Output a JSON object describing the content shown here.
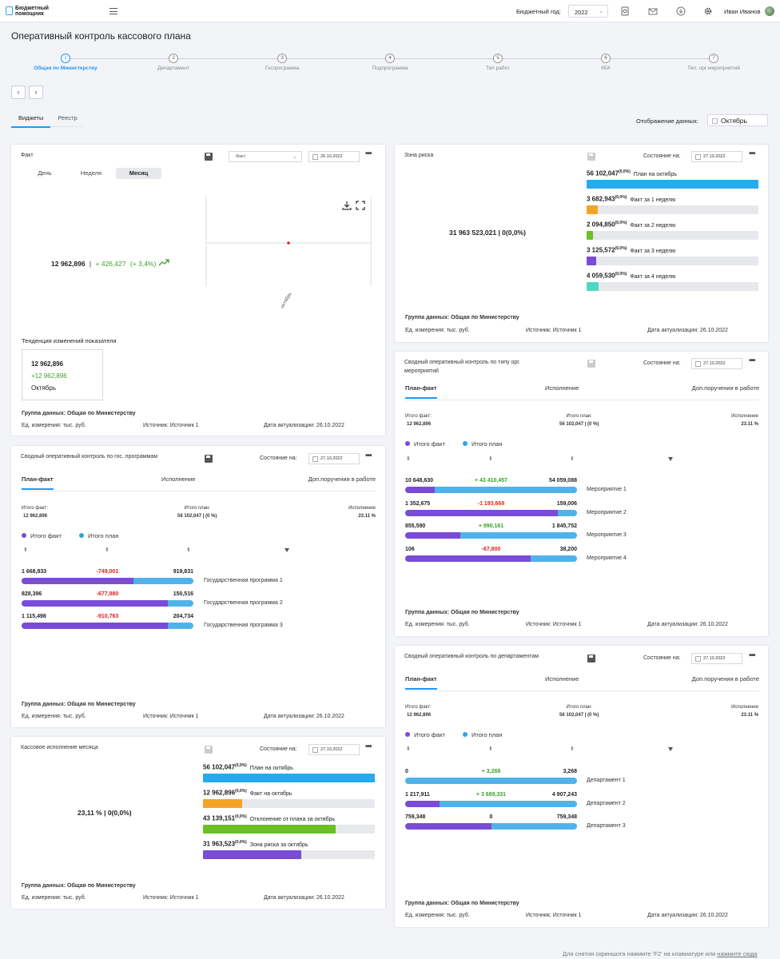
{
  "topbar": {
    "app_name_line1": "Бюджетный",
    "app_name_line2": "помощник",
    "budget_year_label": "Бюджетный год:",
    "budget_year_value": "2022",
    "user_name": "Иван Иванов"
  },
  "page": {
    "title": "Оперативный контроль кассового плана"
  },
  "stepper": [
    {
      "num": "1",
      "label": "Общая по Министерству"
    },
    {
      "num": "2",
      "label": "Департамент"
    },
    {
      "num": "3",
      "label": "Госпрограмма"
    },
    {
      "num": "4",
      "label": "Подпрограмма"
    },
    {
      "num": "5",
      "label": "Тип работ"
    },
    {
      "num": "6",
      "label": "КБК"
    },
    {
      "num": "7",
      "label": "Тип. орг мероприятий"
    }
  ],
  "nav": {
    "prev": "‹",
    "next": "›"
  },
  "view_tabs": [
    "Виджеты",
    "Реестр"
  ],
  "display": {
    "label": "Отображение данных:",
    "value": "Октябрь"
  },
  "common": {
    "state_label": "Состояние на:",
    "date_state": "27.10.2022",
    "more": "•••",
    "group": "Группа данных: Общая по Министерству",
    "unit": "Ед. измерения: тыс. руб.",
    "source": "Источник: Источник 1",
    "updated": "Дата актуализации: 26.10.2022",
    "subtab_plan": "План-факт",
    "subtab_exec": "Исполнение",
    "subtab_extra": "Доп.поручения в работе",
    "tot_fact_label": "Итого факт:",
    "tot_fact_value": "12 962,896",
    "tot_plan_label": "Итого план:",
    "tot_plan_value": "56 102,047 | (0 %)",
    "tot_exec_label": "Исполнение",
    "tot_exec_value": "23.11 %",
    "legend_fact": "Итого факт",
    "legend_plan": "Итого план"
  },
  "fact_card": {
    "title": "Факт",
    "select_value": "Факт",
    "date": "26.10.2022",
    "periods": [
      "День",
      "Неделя",
      "Месяц"
    ],
    "main_value": "12 962,896",
    "separator": "|",
    "delta": "+ 426,427",
    "delta_pct": "(+ 3,4%)",
    "x_tick": "октябрь",
    "trend_title": "Тенденция изменений показателя",
    "trend_value": "12 962,896",
    "trend_delta": "+12 962,896",
    "trend_period": "Октябрь"
  },
  "risk_card": {
    "title": "Зона риска",
    "date": "27.10.2022",
    "main_value": "31 963 523,021  |  0(0,0%)",
    "rows": [
      {
        "value": "56 102,047",
        "pct": "(0,0%)",
        "label": "План на октябрь",
        "fill": 1.0,
        "color": "#27aaf0"
      },
      {
        "value": "3 682,943",
        "pct": "(0,0%)",
        "label": "Факт за 1 неделю",
        "fill": 0.066,
        "color": "#f4a425"
      },
      {
        "value": "2 094,850",
        "pct": "(0,0%)",
        "label": "Факт за 2 неделю",
        "fill": 0.037,
        "color": "#6cc024"
      },
      {
        "value": "3 125,572",
        "pct": "(0,0%)",
        "label": "Факт за 3 неделю",
        "fill": 0.056,
        "color": "#7a4bd6"
      },
      {
        "value": "4 059,530",
        "pct": "(0,0%)",
        "label": "Факт за 4 неделю",
        "fill": 0.072,
        "color": "#4fd8c0"
      }
    ]
  },
  "gosprog_card": {
    "title": "Сводный оперативный контроль по гос. программам",
    "rows": [
      {
        "fact": "1 668,833",
        "delta": "-749,001",
        "plan": "919,831",
        "name": "Государственная программа 1",
        "fill": 0.65,
        "sign": "neg"
      },
      {
        "fact": "828,396",
        "delta": "-677,880",
        "plan": "150,516",
        "name": "Государственная программа 2",
        "fill": 0.85,
        "sign": "neg"
      },
      {
        "fact": "1 115,498",
        "delta": "-910,763",
        "plan": "204,734",
        "name": "Государственная программа 3",
        "fill": 0.85,
        "sign": "neg"
      }
    ]
  },
  "orgtype_card": {
    "title_line1": "Сводный оперативный контроль по типу орг.",
    "title_line2": "мероприятий",
    "rows": [
      {
        "fact": "10 648,630",
        "delta": "+ 43 410,457",
        "plan": "54 059,088",
        "name": "Мероприятие 1",
        "fill": 0.17,
        "sign": "pos"
      },
      {
        "fact": "1 352,675",
        "delta": "-1 193,668",
        "plan": "159,006",
        "name": "Мероприятие 2",
        "fill": 0.89,
        "sign": "neg"
      },
      {
        "fact": "855,590",
        "delta": "+ 990,161",
        "plan": "1 845,752",
        "name": "Мероприятие 3",
        "fill": 0.32,
        "sign": "pos"
      },
      {
        "fact": "106",
        "delta": "-67,800",
        "plan": "38,200",
        "name": "Мероприятие 4",
        "fill": 0.73,
        "sign": "neg"
      }
    ]
  },
  "cash_card": {
    "title": "Кассовое исполнение месяца",
    "main_value": "23,11 %  |  0(0,0%)",
    "rows": [
      {
        "value": "56 102,047",
        "pct": "(0,0%)",
        "label": "План на октябрь",
        "fill": 1.0,
        "color": "#27aaf0"
      },
      {
        "value": "12 962,896",
        "pct": "(0,0%)",
        "label": "Факт на октябрь",
        "fill": 0.23,
        "color": "#f4a425"
      },
      {
        "value": "43 139,151",
        "pct": "(0,0%)",
        "label": "Отклонение от плана за октябрь",
        "fill": 0.77,
        "color": "#6cc024"
      },
      {
        "value": "31 963,523",
        "pct": "(0,0%)",
        "label": "Зона риска за октябрь",
        "fill": 0.57,
        "color": "#7a4bd6"
      }
    ]
  },
  "dept_card": {
    "title": "Сводный оперативный контроль по департаментам",
    "rows": [
      {
        "fact": "0",
        "delta": "+ 3,268",
        "plan": "3,268",
        "name": "Департамент 1",
        "fill": 0.0,
        "sign": "pos"
      },
      {
        "fact": "1 217,911",
        "delta": "+ 3 689,331",
        "plan": "4 907,243",
        "name": "Департамент 2",
        "fill": 0.2,
        "sign": "pos"
      },
      {
        "fact": "759,348",
        "delta": "0",
        "plan": "759,348",
        "name": "Департамент 3",
        "fill": 0.5,
        "sign": ""
      }
    ]
  },
  "footer_hint": {
    "text": "Для снятия скриншота нажмите 'F2' на клавиатуре или",
    "link": "нажмите сюда"
  }
}
